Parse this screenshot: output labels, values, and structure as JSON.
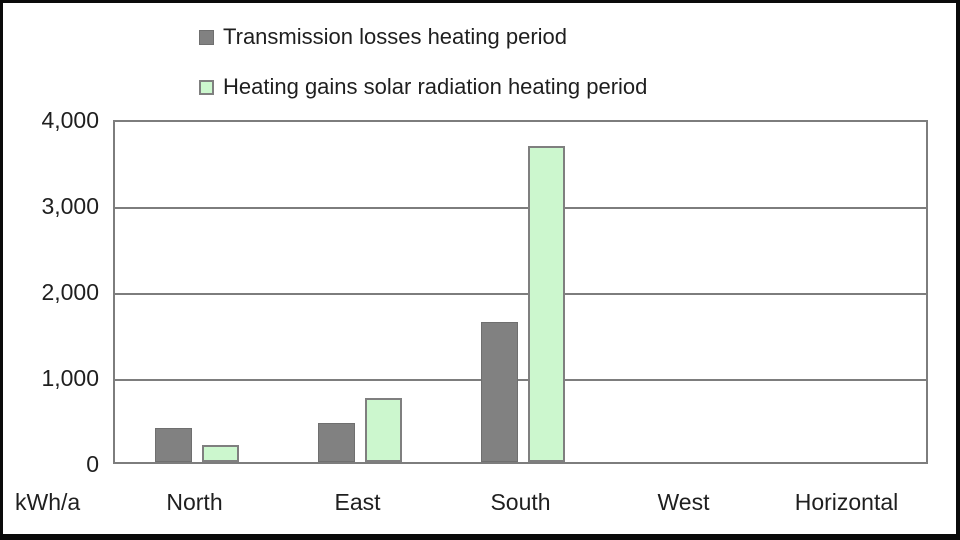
{
  "chart_data": {
    "type": "bar",
    "categories": [
      "North",
      "East",
      "South",
      "West",
      "Horizontal"
    ],
    "series": [
      {
        "name": "Transmission losses heating period",
        "color": "#818181",
        "border_color": "#6f6f6f",
        "values": [
          400,
          450,
          1630,
          0,
          0
        ]
      },
      {
        "name": "Heating gains solar radiation heating period",
        "color": "#ccf7ce",
        "border_color": "#7f7f7f",
        "values": [
          200,
          740,
          3670,
          0,
          0
        ]
      }
    ],
    "title": "",
    "xlabel": "",
    "ylabel": "kWh/a",
    "ylim": [
      0,
      4000
    ],
    "yticks": [
      {
        "value": 0,
        "label": "0"
      },
      {
        "value": 1000,
        "label": "1,000"
      },
      {
        "value": 2000,
        "label": "2,000"
      },
      {
        "value": 3000,
        "label": "3,000"
      },
      {
        "value": 4000,
        "label": "4,000"
      }
    ],
    "grid": true,
    "legend_position": "top-left",
    "gridline_color": "#7d7d7d",
    "text_color": "#1f1f1f"
  }
}
